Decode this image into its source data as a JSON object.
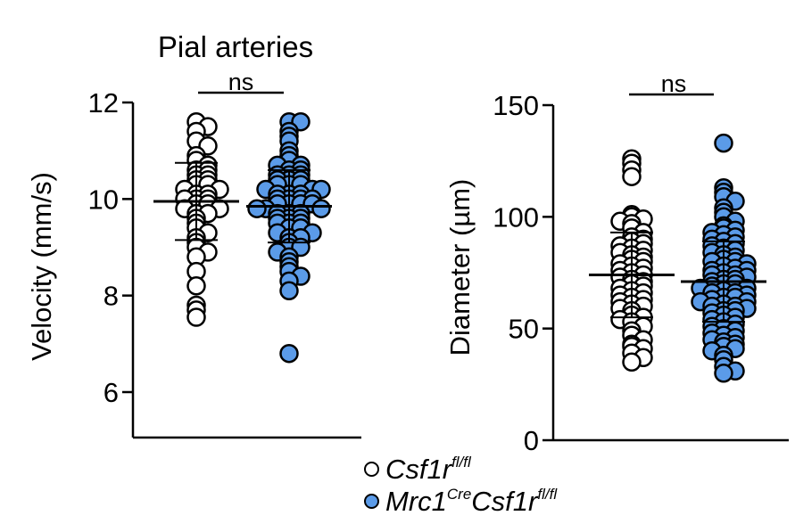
{
  "colors": {
    "control_fill": "#ffffff",
    "knockout_fill": "#5b9be8",
    "stroke": "#000000"
  },
  "legend": {
    "placement": "bottom-center",
    "items": [
      {
        "base": "Csf1r",
        "sup": "fl/fl",
        "pre_base": "",
        "pre_sup": ""
      },
      {
        "pre_base": "Mrc1",
        "pre_sup": "Cre",
        "base": "Csf1r",
        "sup": "fl/fl"
      }
    ]
  },
  "chart_data": [
    {
      "type": "scatter",
      "title": "Pial arteries",
      "ylabel": "Velocity (mm/s)",
      "ylim": [
        5,
        12
      ],
      "yticks": [
        6,
        8,
        10,
        12
      ],
      "significance": "ns",
      "groups": [
        {
          "name": "Csf1r fl/fl",
          "mean": 9.95,
          "sd": 0.8,
          "values": [
            11.6,
            11.5,
            11.4,
            11.2,
            11.1,
            10.9,
            10.8,
            10.7,
            10.6,
            10.6,
            10.5,
            10.5,
            10.4,
            10.4,
            10.3,
            10.3,
            10.2,
            10.2,
            10.1,
            10.1,
            10.0,
            10.0,
            10.0,
            9.9,
            9.9,
            9.8,
            9.8,
            9.7,
            9.7,
            9.6,
            9.5,
            9.4,
            9.3,
            9.2,
            9.1,
            9.0,
            8.9,
            8.8,
            8.5,
            8.2,
            7.8,
            7.7,
            7.55
          ]
        },
        {
          "name": "Mrc1Cre Csf1r fl/fl",
          "mean": 9.85,
          "sd": 0.75,
          "values": [
            11.6,
            11.6,
            11.4,
            11.3,
            11.2,
            11.0,
            10.9,
            10.8,
            10.7,
            10.7,
            10.6,
            10.6,
            10.5,
            10.5,
            10.5,
            10.4,
            10.4,
            10.4,
            10.3,
            10.3,
            10.3,
            10.2,
            10.2,
            10.2,
            10.1,
            10.1,
            10.1,
            10.0,
            10.0,
            10.0,
            10.0,
            9.9,
            9.9,
            9.9,
            9.9,
            9.8,
            9.8,
            9.8,
            9.7,
            9.7,
            9.7,
            9.6,
            9.6,
            9.6,
            9.5,
            9.5,
            9.5,
            9.4,
            9.4,
            9.3,
            9.3,
            9.2,
            9.2,
            9.1,
            9.0,
            9.0,
            8.9,
            8.8,
            8.7,
            8.6,
            8.5,
            8.4,
            8.3,
            8.1,
            6.8
          ]
        }
      ]
    },
    {
      "type": "scatter",
      "title": "",
      "ylabel": "Diameter (µm)",
      "ylim": [
        0,
        150
      ],
      "yticks": [
        0,
        50,
        100,
        150
      ],
      "significance": "ns",
      "groups": [
        {
          "name": "Csf1r fl/fl",
          "mean": 74,
          "sd": 19,
          "values": [
            126,
            124,
            121,
            118,
            101,
            100,
            99,
            98,
            97,
            95,
            93,
            91,
            90,
            89,
            88,
            87,
            86,
            85,
            84,
            83,
            82,
            81,
            80,
            79,
            78,
            77,
            76,
            75,
            74,
            73,
            72,
            71,
            70,
            69,
            68,
            67,
            66,
            65,
            64,
            63,
            62,
            61,
            60,
            59,
            58,
            56,
            55,
            54,
            53,
            51,
            49,
            47,
            45,
            43,
            42,
            41,
            39,
            37,
            35
          ]
        },
        {
          "name": "Mrc1Cre Csf1r fl/fl",
          "mean": 71,
          "sd": 18,
          "values": [
            133,
            113,
            111,
            109,
            107,
            104,
            102,
            100,
            98,
            96,
            95,
            94,
            93,
            92,
            91,
            90,
            89,
            88,
            87,
            86,
            85,
            84,
            83,
            82,
            81,
            80,
            80,
            79,
            78,
            77,
            76,
            76,
            75,
            74,
            74,
            73,
            72,
            72,
            71,
            70,
            70,
            69,
            68,
            68,
            67,
            66,
            66,
            65,
            64,
            64,
            63,
            62,
            62,
            61,
            60,
            60,
            59,
            58,
            58,
            57,
            56,
            55,
            54,
            53,
            52,
            51,
            50,
            49,
            48,
            47,
            46,
            45,
            44,
            43,
            42,
            41,
            40,
            38,
            36,
            33,
            31,
            30
          ]
        }
      ]
    }
  ]
}
